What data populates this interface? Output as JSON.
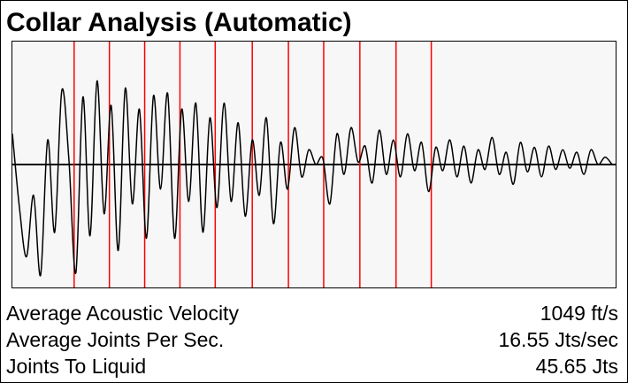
{
  "title": "Collar Analysis (Automatic)",
  "stats": [
    {
      "label": "Average Acoustic Velocity",
      "value": "1049 ft/s"
    },
    {
      "label": "Average Joints Per Sec.",
      "value": "16.55 Jts/sec"
    },
    {
      "label": "Joints To Liquid",
      "value": "45.65 Jts"
    }
  ],
  "chart_data": {
    "type": "line",
    "grid": false,
    "colors": {
      "waveform": "#000000",
      "collar_markers": "#ff0000",
      "background": "#f7f7f7"
    },
    "collar_marker_count": 11,
    "collar_positions": [
      70,
      110,
      150,
      190,
      230,
      272,
      313,
      353,
      394,
      435,
      475
    ],
    "waveform": [
      [
        0,
        25
      ],
      [
        8,
        -35
      ],
      [
        16,
        -75
      ],
      [
        24,
        -25
      ],
      [
        32,
        -90
      ],
      [
        40,
        20
      ],
      [
        48,
        -55
      ],
      [
        56,
        60
      ],
      [
        64,
        5
      ],
      [
        72,
        -88
      ],
      [
        80,
        55
      ],
      [
        88,
        -58
      ],
      [
        96,
        68
      ],
      [
        104,
        -40
      ],
      [
        112,
        48
      ],
      [
        120,
        -70
      ],
      [
        128,
        62
      ],
      [
        136,
        -32
      ],
      [
        144,
        45
      ],
      [
        152,
        -60
      ],
      [
        160,
        56
      ],
      [
        168,
        -20
      ],
      [
        176,
        58
      ],
      [
        184,
        -60
      ],
      [
        192,
        45
      ],
      [
        200,
        -30
      ],
      [
        208,
        50
      ],
      [
        216,
        -55
      ],
      [
        224,
        38
      ],
      [
        232,
        -35
      ],
      [
        240,
        50
      ],
      [
        248,
        -30
      ],
      [
        256,
        34
      ],
      [
        264,
        -42
      ],
      [
        272,
        20
      ],
      [
        280,
        -25
      ],
      [
        288,
        38
      ],
      [
        296,
        -48
      ],
      [
        304,
        18
      ],
      [
        312,
        -20
      ],
      [
        320,
        30
      ],
      [
        328,
        -10
      ],
      [
        336,
        12
      ],
      [
        344,
        0
      ],
      [
        352,
        5
      ],
      [
        360,
        -32
      ],
      [
        368,
        25
      ],
      [
        376,
        -8
      ],
      [
        384,
        30
      ],
      [
        392,
        2
      ],
      [
        400,
        15
      ],
      [
        408,
        -15
      ],
      [
        416,
        28
      ],
      [
        424,
        -8
      ],
      [
        432,
        20
      ],
      [
        440,
        -10
      ],
      [
        448,
        25
      ],
      [
        456,
        -5
      ],
      [
        464,
        18
      ],
      [
        472,
        -22
      ],
      [
        480,
        14
      ],
      [
        488,
        -5
      ],
      [
        496,
        20
      ],
      [
        504,
        -10
      ],
      [
        512,
        15
      ],
      [
        520,
        -15
      ],
      [
        528,
        12
      ],
      [
        536,
        -4
      ],
      [
        544,
        22
      ],
      [
        552,
        -8
      ],
      [
        560,
        10
      ],
      [
        568,
        -16
      ],
      [
        576,
        18
      ],
      [
        584,
        -6
      ],
      [
        592,
        14
      ],
      [
        600,
        -10
      ],
      [
        608,
        15
      ],
      [
        616,
        -4
      ],
      [
        624,
        12
      ],
      [
        632,
        -3
      ],
      [
        640,
        10
      ],
      [
        648,
        -8
      ],
      [
        656,
        12
      ],
      [
        664,
        0
      ],
      [
        672,
        6
      ],
      [
        680,
        0
      ]
    ],
    "ylim": [
      -100,
      100
    ],
    "xlim": [
      0,
      684
    ]
  }
}
